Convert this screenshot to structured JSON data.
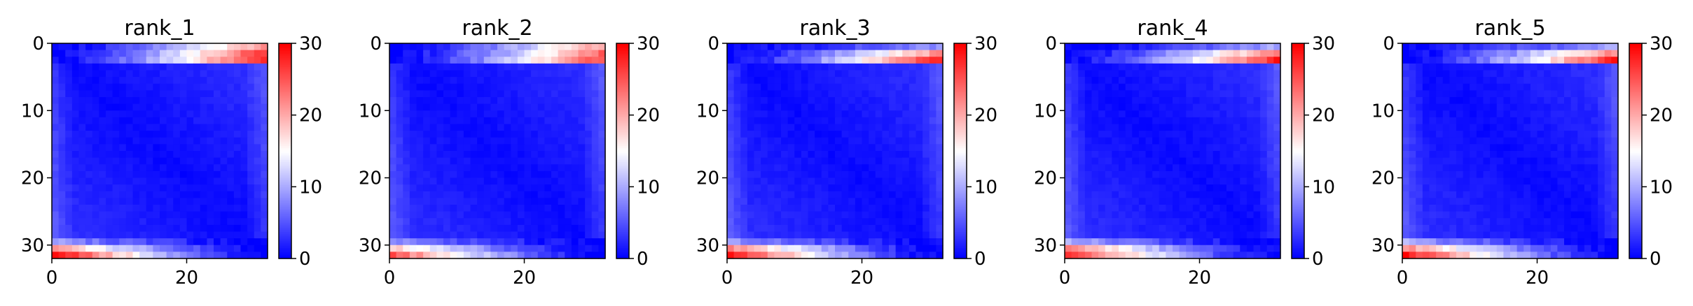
{
  "chart_data": [
    {
      "type": "heatmap",
      "title": "rank_1",
      "xticks": [
        "0",
        "20"
      ],
      "yticks": [
        "0",
        "10",
        "20",
        "30"
      ],
      "colorbar": {
        "ticks": [
          "0",
          "10",
          "20",
          "30"
        ],
        "range": [
          0,
          30
        ],
        "cmap": "bwr"
      },
      "xlim": [
        0,
        32
      ],
      "ylim": [
        32,
        0
      ],
      "matrix_size": [
        32,
        32
      ],
      "top_band_rows": [
        0,
        1,
        2
      ],
      "top_band_peak": [
        22,
        27,
        29
      ],
      "bottom_band_rows": [
        29,
        30,
        31
      ],
      "bottom_band_peak": [
        9,
        21,
        30
      ],
      "interior_range": [
        0,
        5
      ]
    },
    {
      "type": "heatmap",
      "title": "rank_2",
      "xticks": [
        "0",
        "20"
      ],
      "yticks": [
        "0",
        "10",
        "20",
        "30"
      ],
      "colorbar": {
        "ticks": [
          "0",
          "10",
          "20",
          "30"
        ],
        "range": [
          0,
          30
        ],
        "cmap": "bwr"
      },
      "xlim": [
        0,
        32
      ],
      "ylim": [
        32,
        0
      ],
      "matrix_size": [
        32,
        32
      ],
      "top_band_rows": [
        0,
        1,
        2
      ],
      "top_band_peak": [
        21,
        24,
        26
      ],
      "bottom_band_rows": [
        29,
        30,
        31
      ],
      "bottom_band_peak": [
        8,
        18,
        25
      ],
      "interior_range": [
        0,
        5
      ]
    },
    {
      "type": "heatmap",
      "title": "rank_3",
      "xticks": [
        "0",
        "20"
      ],
      "yticks": [
        "0",
        "10",
        "20",
        "30"
      ],
      "colorbar": {
        "ticks": [
          "0",
          "10",
          "20",
          "30"
        ],
        "range": [
          0,
          30
        ],
        "cmap": "bwr"
      },
      "xlim": [
        0,
        32
      ],
      "ylim": [
        32,
        0
      ],
      "matrix_size": [
        32,
        32
      ],
      "top_band_rows": [
        0,
        1,
        2
      ],
      "top_band_peak": [
        9,
        22,
        29
      ],
      "bottom_band_rows": [
        29,
        30,
        31
      ],
      "bottom_band_peak": [
        9,
        22,
        29
      ],
      "interior_range": [
        0,
        5
      ]
    },
    {
      "type": "heatmap",
      "title": "rank_4",
      "xticks": [
        "0",
        "20"
      ],
      "yticks": [
        "0",
        "10",
        "20",
        "30"
      ],
      "colorbar": {
        "ticks": [
          "0",
          "10",
          "20",
          "30"
        ],
        "range": [
          0,
          30
        ],
        "cmap": "bwr"
      },
      "xlim": [
        0,
        32
      ],
      "ylim": [
        32,
        0
      ],
      "matrix_size": [
        32,
        32
      ],
      "top_band_rows": [
        0,
        1,
        2
      ],
      "top_band_peak": [
        10,
        23,
        28
      ],
      "bottom_band_rows": [
        29,
        30,
        31
      ],
      "bottom_band_peak": [
        10,
        23,
        28
      ],
      "interior_range": [
        0,
        5
      ]
    },
    {
      "type": "heatmap",
      "title": "rank_5",
      "xticks": [
        "0",
        "20"
      ],
      "yticks": [
        "0",
        "10",
        "20",
        "30"
      ],
      "colorbar": {
        "ticks": [
          "0",
          "10",
          "20",
          "30"
        ],
        "range": [
          0,
          30
        ],
        "cmap": "bwr"
      },
      "xlim": [
        0,
        32
      ],
      "ylim": [
        32,
        0
      ],
      "matrix_size": [
        32,
        32
      ],
      "top_band_rows": [
        0,
        1,
        2
      ],
      "top_band_peak": [
        10,
        22,
        28
      ],
      "bottom_band_rows": [
        29,
        30,
        31
      ],
      "bottom_band_peak": [
        10,
        22,
        29
      ],
      "interior_range": [
        0,
        5
      ]
    }
  ]
}
